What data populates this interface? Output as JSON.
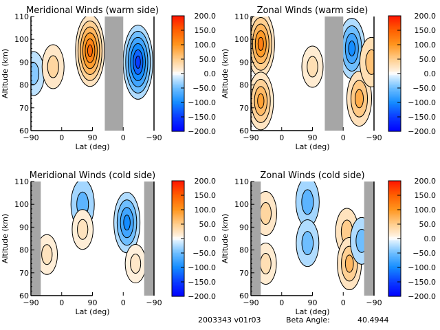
{
  "footer": {
    "id_label": "2003343 v01r03",
    "beta_label": "Beta Angle:",
    "beta_value": "40.4944"
  },
  "colorbar": {
    "ticks": [
      "200.0",
      "150.0",
      "100.0",
      "50.0",
      "0.0",
      "-50.0",
      "-100.0",
      "-150.0",
      "-200.0"
    ],
    "range": [
      -200,
      200
    ],
    "colors": {
      "max": "#ff1a00",
      "high": "#ff7f00",
      "mid_warm": "#ffd49a",
      "zero": "#ffffff",
      "mid_cool": "#9fd2ff",
      "low": "#1a8cff",
      "min": "#0000ff"
    }
  },
  "chart_data": [
    {
      "type": "heatmap",
      "title": "Meridional Winds (warm side)",
      "xlabel": "Lat (deg)",
      "ylabel": "Altitude (km)",
      "x_ticks": [
        "-90",
        "0",
        "90",
        "0",
        "-90"
      ],
      "y_ticks": [
        "60",
        "70",
        "80",
        "90",
        "100",
        "110"
      ],
      "ylim": [
        60,
        110
      ],
      "no_data_gray_band_x": [
        0.6,
        0.75
      ],
      "blobs": [
        {
          "x": 0.02,
          "y": 85,
          "value": -40
        },
        {
          "x": 0.18,
          "y": 88,
          "value": 40
        },
        {
          "x": 0.48,
          "y": 95,
          "value": 140
        },
        {
          "x": 0.87,
          "y": 90,
          "value": -150
        }
      ]
    },
    {
      "type": "heatmap",
      "title": "Zonal Winds (warm side)",
      "xlabel": "Lat (deg)",
      "ylabel": "Altitude (km)",
      "x_ticks": [
        "-90",
        "0",
        "90",
        "0",
        "-90"
      ],
      "y_ticks": [
        "60",
        "70",
        "80",
        "90",
        "100",
        "110"
      ],
      "ylim": [
        60,
        110
      ],
      "no_data_gray_band_x": [
        0.6,
        0.75
      ],
      "blobs": [
        {
          "x": 0.08,
          "y": 98,
          "value": 120
        },
        {
          "x": 0.08,
          "y": 73,
          "value": 90
        },
        {
          "x": 0.5,
          "y": 88,
          "value": 30
        },
        {
          "x": 0.82,
          "y": 96,
          "value": -100
        },
        {
          "x": 0.88,
          "y": 74,
          "value": 80
        },
        {
          "x": 0.98,
          "y": 90,
          "value": 60
        }
      ]
    },
    {
      "type": "heatmap",
      "title": "Meridional Winds (cold side)",
      "xlabel": "Lat (deg)",
      "ylabel": "Altitude (km)",
      "x_ticks": [
        "-90",
        "0",
        "90",
        "0",
        "-90"
      ],
      "y_ticks": [
        "60",
        "70",
        "80",
        "90",
        "100",
        "110"
      ],
      "ylim": [
        60,
        110
      ],
      "no_data_gray_band_x": [
        [
          0.0,
          0.08
        ],
        [
          0.92,
          1.0
        ]
      ],
      "blobs": [
        {
          "x": 0.13,
          "y": 78,
          "value": 25
        },
        {
          "x": 0.42,
          "y": 100,
          "value": -60
        },
        {
          "x": 0.42,
          "y": 89,
          "value": 25
        },
        {
          "x": 0.78,
          "y": 92,
          "value": -100
        },
        {
          "x": 0.85,
          "y": 74,
          "value": 20
        }
      ]
    },
    {
      "type": "heatmap",
      "title": "Zonal Winds (cold side)",
      "xlabel": "Lat (deg)",
      "ylabel": "Altitude (km)",
      "x_ticks": [
        "-90",
        "0",
        "90",
        "0",
        "-90"
      ],
      "y_ticks": [
        "60",
        "70",
        "80",
        "90",
        "100",
        "110"
      ],
      "ylim": [
        60,
        110
      ],
      "no_data_gray_band_x": [
        [
          0.0,
          0.08
        ],
        [
          0.92,
          1.0
        ]
      ],
      "blobs": [
        {
          "x": 0.12,
          "y": 96,
          "value": 40
        },
        {
          "x": 0.12,
          "y": 74,
          "value": 30
        },
        {
          "x": 0.46,
          "y": 101,
          "value": -60
        },
        {
          "x": 0.46,
          "y": 83,
          "value": -50
        },
        {
          "x": 0.78,
          "y": 88,
          "value": 50
        },
        {
          "x": 0.8,
          "y": 74,
          "value": 70
        },
        {
          "x": 0.9,
          "y": 84,
          "value": -50
        }
      ]
    }
  ]
}
